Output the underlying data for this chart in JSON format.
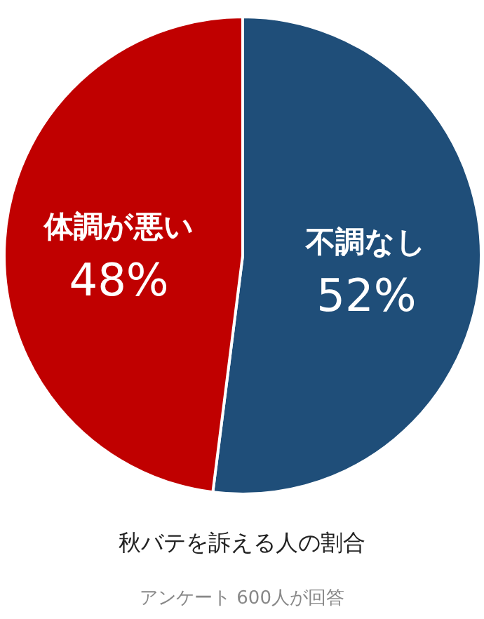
{
  "chart_data": {
    "type": "pie",
    "title": "秋バテを訴える人の割合",
    "annotations": [
      "アンケート 600人が回答"
    ],
    "categories": [
      "不調なし",
      "体調が悪い"
    ],
    "values": [
      52,
      48
    ],
    "value_labels": [
      "52%",
      "48%"
    ],
    "colors": [
      "#1f4e79",
      "#c00000"
    ]
  }
}
